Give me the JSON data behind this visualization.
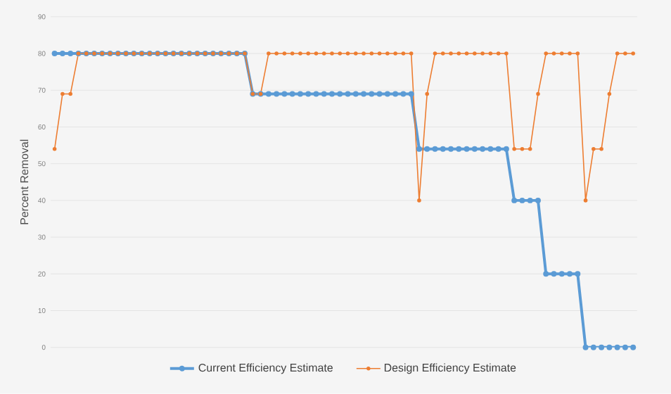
{
  "chart_data": {
    "type": "line",
    "ylabel": "Percent Removal",
    "categories": [
      null,
      null,
      null,
      null,
      null,
      null,
      null,
      null,
      null,
      null,
      null,
      null,
      null,
      null,
      null,
      null,
      null,
      null,
      null,
      null,
      null,
      null,
      null,
      null,
      null,
      null,
      null,
      null,
      null,
      null,
      null,
      null,
      null,
      null,
      null,
      null,
      null,
      null,
      null,
      null,
      null,
      null,
      null,
      null,
      null,
      null,
      null,
      null,
      null,
      null,
      null,
      null,
      null,
      null,
      null,
      null,
      null,
      null,
      null,
      null,
      null,
      null,
      null,
      null,
      null,
      null,
      null,
      null,
      null,
      null,
      null,
      null,
      null,
      null
    ],
    "series": [
      {
        "name": "Current Efficiency Estimate",
        "color": "#5b9bd5",
        "values": [
          80,
          80,
          80,
          80,
          80,
          80,
          80,
          80,
          80,
          80,
          80,
          80,
          80,
          80,
          80,
          80,
          80,
          80,
          80,
          80,
          80,
          80,
          80,
          80,
          80,
          69,
          69,
          69,
          69,
          69,
          69,
          69,
          69,
          69,
          69,
          69,
          69,
          69,
          69,
          69,
          69,
          69,
          69,
          69,
          69,
          69,
          54,
          54,
          54,
          54,
          54,
          54,
          54,
          54,
          54,
          54,
          54,
          54,
          40,
          40,
          40,
          40,
          20,
          20,
          20,
          20,
          20,
          0,
          0,
          0,
          0,
          0,
          0,
          0
        ]
      },
      {
        "name": "Design Efficiency Estimate",
        "color": "#ed7d31",
        "values": [
          54,
          69,
          69,
          80,
          80,
          80,
          80,
          80,
          80,
          80,
          80,
          80,
          80,
          80,
          80,
          80,
          80,
          80,
          80,
          80,
          80,
          80,
          80,
          80,
          80,
          69,
          69,
          80,
          80,
          80,
          80,
          80,
          80,
          80,
          80,
          80,
          80,
          80,
          80,
          80,
          80,
          80,
          80,
          80,
          80,
          80,
          40,
          69,
          80,
          80,
          80,
          80,
          80,
          80,
          80,
          80,
          80,
          80,
          54,
          54,
          54,
          69,
          80,
          80,
          80,
          80,
          80,
          40,
          54,
          54,
          69,
          80,
          80,
          80
        ]
      }
    ],
    "ylim": [
      0,
      90
    ],
    "yticks": [
      0,
      10,
      20,
      30,
      40,
      50,
      60,
      70,
      80,
      90
    ],
    "grid": "y",
    "legend": "bottom",
    "marker": "circle",
    "line_style": "solid"
  }
}
